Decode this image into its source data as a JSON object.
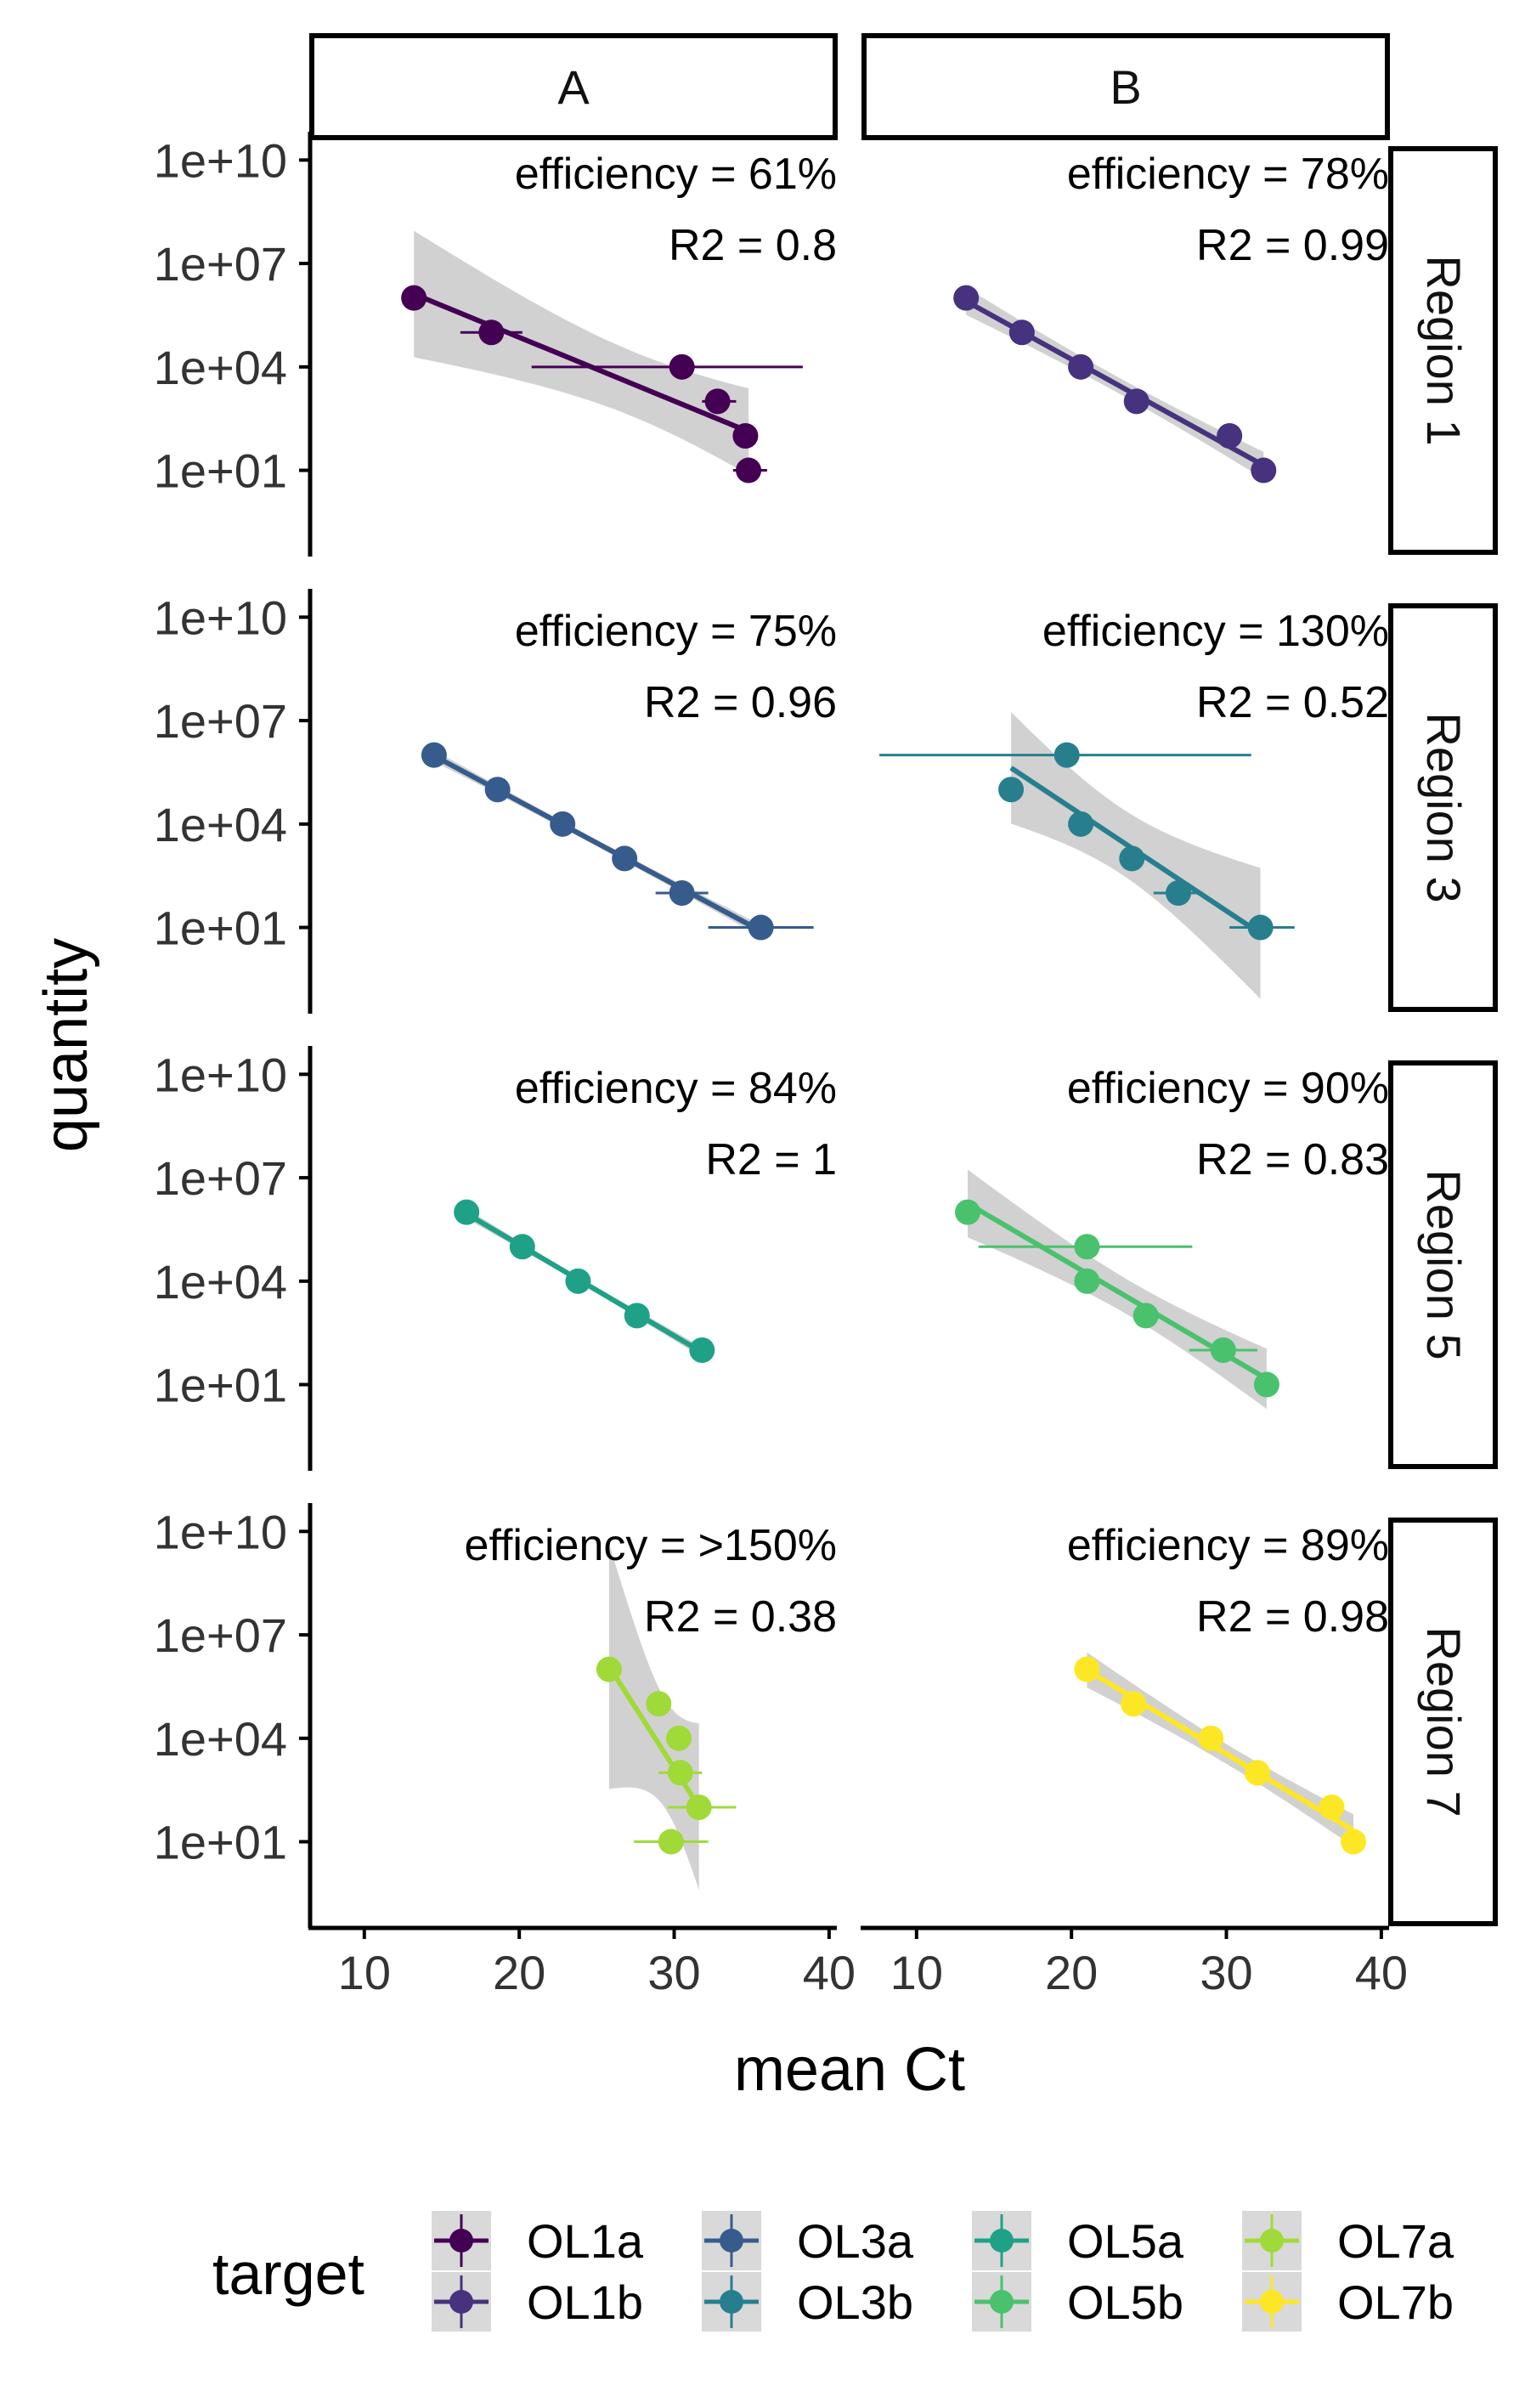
{
  "chart_data": {
    "type": "scatter",
    "facet_rows": [
      "Region 1",
      "Region 3",
      "Region 5",
      "Region 7"
    ],
    "facet_cols": [
      "A",
      "B"
    ],
    "xlabel": "mean Ct",
    "ylabel": "quantity",
    "x_ticks": [
      10,
      20,
      30,
      40
    ],
    "y_ticks": [
      10,
      10000,
      10000000,
      10000000000
    ],
    "y_tick_labels": [
      "1e+01",
      "1e+04",
      "1e+07",
      "1e+10"
    ],
    "y_scale": "log10",
    "xlim": [
      6.5,
      40.5
    ],
    "ylim": [
      0.0316,
      50000000000
    ],
    "grid": false,
    "legend": {
      "title": "target",
      "position": "bottom",
      "items": [
        "OL1a",
        "OL1b",
        "OL3a",
        "OL3b",
        "OL5a",
        "OL5b",
        "OL7a",
        "OL7b"
      ],
      "colors": [
        "#440154",
        "#46327e",
        "#365c8d",
        "#277f8e",
        "#1fa187",
        "#4ac16d",
        "#a0da39",
        "#fde725"
      ]
    },
    "panels": [
      {
        "row": "Region 1",
        "col": "A",
        "target": "OL1a",
        "color": "#440154",
        "efficiency_label": "efficiency =   61%",
        "r2_label": "R2 = 0.8",
        "points": [
          {
            "x": 13.2,
            "y": 1000000,
            "xmin": 13.2,
            "xmax": 13.2
          },
          {
            "x": 18.2,
            "y": 100000,
            "xmin": 16.2,
            "xmax": 20.2
          },
          {
            "x": 30.5,
            "y": 10000,
            "xmin": 20.8,
            "xmax": 38.3
          },
          {
            "x": 32.8,
            "y": 1000,
            "xmin": 31.8,
            "xmax": 34.0
          },
          {
            "x": 34.6,
            "y": 100,
            "xmin": 34.6,
            "xmax": 34.6
          },
          {
            "x": 34.8,
            "y": 10,
            "xmin": 33.8,
            "xmax": 36.0
          }
        ]
      },
      {
        "row": "Region 1",
        "col": "B",
        "target": "OL1b",
        "color": "#46327e",
        "efficiency_label": "efficiency =   78%",
        "r2_label": "R2 = 0.99",
        "points": [
          {
            "x": 13.2,
            "y": 1000000,
            "xmin": 13.2,
            "xmax": 13.2
          },
          {
            "x": 16.8,
            "y": 100000,
            "xmin": 16.8,
            "xmax": 16.8
          },
          {
            "x": 20.6,
            "y": 10000,
            "xmin": 20.6,
            "xmax": 20.6
          },
          {
            "x": 24.2,
            "y": 1000,
            "xmin": 24.2,
            "xmax": 24.2
          },
          {
            "x": 30.2,
            "y": 100,
            "xmin": 30.2,
            "xmax": 30.2
          },
          {
            "x": 32.4,
            "y": 10,
            "xmin": 32.4,
            "xmax": 32.4
          }
        ]
      },
      {
        "row": "Region 3",
        "col": "A",
        "target": "OL3a",
        "color": "#365c8d",
        "efficiency_label": "efficiency =   75%",
        "r2_label": "R2 = 0.96",
        "points": [
          {
            "x": 14.5,
            "y": 1000000,
            "xmin": 14.5,
            "xmax": 14.5
          },
          {
            "x": 18.6,
            "y": 100000,
            "xmin": 18.6,
            "xmax": 18.6
          },
          {
            "x": 22.8,
            "y": 10000,
            "xmin": 22.8,
            "xmax": 22.8
          },
          {
            "x": 26.8,
            "y": 1000,
            "xmin": 26.8,
            "xmax": 26.8
          },
          {
            "x": 30.5,
            "y": 100,
            "xmin": 28.8,
            "xmax": 32.2
          },
          {
            "x": 35.6,
            "y": 10,
            "xmin": 32.2,
            "xmax": 39.0
          }
        ]
      },
      {
        "row": "Region 3",
        "col": "B",
        "target": "OL3b",
        "color": "#277f8e",
        "efficiency_label": "efficiency =  130%",
        "r2_label": "R2 = 0.52",
        "points": [
          {
            "x": 19.7,
            "y": 1000000,
            "xmin": 7.6,
            "xmax": 31.6
          },
          {
            "x": 16.1,
            "y": 100000,
            "xmin": 16.1,
            "xmax": 16.1
          },
          {
            "x": 20.6,
            "y": 10000,
            "xmin": 20.6,
            "xmax": 20.6
          },
          {
            "x": 23.9,
            "y": 1000,
            "xmin": 23.9,
            "xmax": 23.9
          },
          {
            "x": 26.9,
            "y": 100,
            "xmin": 25.3,
            "xmax": 28.5
          },
          {
            "x": 32.2,
            "y": 10,
            "xmin": 30.2,
            "xmax": 34.4
          }
        ]
      },
      {
        "row": "Region 5",
        "col": "A",
        "target": "OL5a",
        "color": "#1fa187",
        "efficiency_label": "efficiency =   84%",
        "r2_label": "R2 = 1",
        "points": [
          {
            "x": 16.6,
            "y": 1000000,
            "xmin": 16.6,
            "xmax": 16.6
          },
          {
            "x": 20.2,
            "y": 100000,
            "xmin": 20.2,
            "xmax": 20.2
          },
          {
            "x": 23.8,
            "y": 10000,
            "xmin": 23.8,
            "xmax": 23.8
          },
          {
            "x": 27.6,
            "y": 1000,
            "xmin": 27.6,
            "xmax": 27.6
          },
          {
            "x": 31.8,
            "y": 100,
            "xmin": 31.8,
            "xmax": 31.8
          }
        ]
      },
      {
        "row": "Region 5",
        "col": "B",
        "target": "OL5b",
        "color": "#4ac16d",
        "efficiency_label": "efficiency =   90%",
        "r2_label": "R2 = 0.83",
        "points": [
          {
            "x": 13.3,
            "y": 1000000,
            "xmin": 13.3,
            "xmax": 13.3
          },
          {
            "x": 21.0,
            "y": 100000,
            "xmin": 14.0,
            "xmax": 27.8
          },
          {
            "x": 21.0,
            "y": 10000,
            "xmin": 21.0,
            "xmax": 21.0
          },
          {
            "x": 24.8,
            "y": 1000,
            "xmin": 24.8,
            "xmax": 24.8
          },
          {
            "x": 29.8,
            "y": 100,
            "xmin": 27.6,
            "xmax": 32.0
          },
          {
            "x": 32.6,
            "y": 10,
            "xmin": 32.6,
            "xmax": 32.6
          }
        ]
      },
      {
        "row": "Region 7",
        "col": "A",
        "target": "OL7a",
        "color": "#a0da39",
        "efficiency_label": "efficiency = >150%",
        "r2_label": "R2 = 0.38",
        "points": [
          {
            "x": 25.8,
            "y": 1000000,
            "xmin": 25.8,
            "xmax": 25.8
          },
          {
            "x": 29.0,
            "y": 100000,
            "xmin": 29.0,
            "xmax": 29.0
          },
          {
            "x": 30.3,
            "y": 10000,
            "xmin": 30.3,
            "xmax": 30.3
          },
          {
            "x": 30.4,
            "y": 1000,
            "xmin": 29.0,
            "xmax": 31.8
          },
          {
            "x": 31.6,
            "y": 100,
            "xmin": 29.6,
            "xmax": 34.0
          },
          {
            "x": 29.8,
            "y": 10,
            "xmin": 27.4,
            "xmax": 32.2
          }
        ]
      },
      {
        "row": "Region 7",
        "col": "B",
        "target": "OL7b",
        "color": "#fde725",
        "efficiency_label": "efficiency =   89%",
        "r2_label": "R2 = 0.98",
        "points": [
          {
            "x": 21.0,
            "y": 1000000,
            "xmin": 21.0,
            "xmax": 21.0
          },
          {
            "x": 24.0,
            "y": 100000,
            "xmin": 24.0,
            "xmax": 24.0
          },
          {
            "x": 29.0,
            "y": 10000,
            "xmin": 29.0,
            "xmax": 29.0
          },
          {
            "x": 32.0,
            "y": 1000,
            "xmin": 32.0,
            "xmax": 32.0
          },
          {
            "x": 36.8,
            "y": 100,
            "xmin": 36.8,
            "xmax": 36.8
          },
          {
            "x": 38.2,
            "y": 10,
            "xmin": 38.2,
            "xmax": 38.2
          }
        ]
      }
    ]
  }
}
